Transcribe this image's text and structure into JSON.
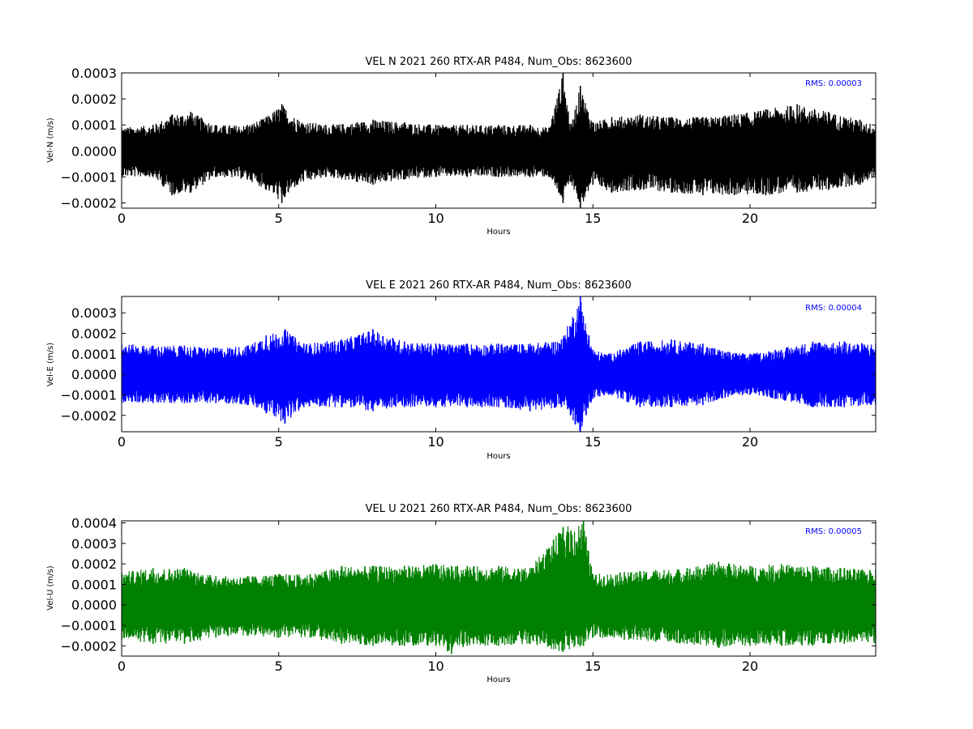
{
  "chart_data": [
    {
      "type": "line",
      "title": "VEL N 2021 260 RTX-AR  P484, Num_Obs: 8623600",
      "xlabel": "Hours",
      "ylabel": "Vel-N (m/s)",
      "xlim": [
        0,
        24
      ],
      "ylim": [
        -0.00022,
        0.0003
      ],
      "xticks": [
        0,
        5,
        10,
        15,
        20
      ],
      "xtick_labels": [
        "0",
        "5",
        "10",
        "15",
        "20"
      ],
      "yticks": [
        -0.0002,
        -0.0001,
        0.0,
        0.0001,
        0.0002,
        0.0003
      ],
      "ytick_labels": [
        "−0.0002",
        "−0.0001",
        "0.0000",
        "0.0001",
        "0.0002",
        "0.0003"
      ],
      "color": "#000000",
      "annotation": "RMS:  0.00003",
      "series": [
        {
          "hours": [
            0,
            1,
            1.6,
            2.2,
            3,
            4,
            4.6,
            5.1,
            5.6,
            6.5,
            7.5,
            8,
            9,
            10,
            11,
            12,
            13,
            13.6,
            14.05,
            14.3,
            14.6,
            15,
            15.6,
            16.5,
            17.5,
            18.5,
            19.5,
            20.5,
            21.5,
            22.5,
            23.5,
            24
          ],
          "upper": [
            9e-05,
            0.0001,
            0.00014,
            0.00015,
            0.0001,
            0.0001,
            0.00013,
            0.00018,
            0.00012,
            0.0001,
            0.00011,
            0.00012,
            0.00011,
            0.0001,
            0.0001,
            0.0001,
            0.0001,
            9e-05,
            0.0003,
            0.0001,
            0.00025,
            0.00011,
            0.00013,
            0.00014,
            0.00013,
            0.00013,
            0.00014,
            0.00016,
            0.00018,
            0.00015,
            0.00012,
            0.0001
          ],
          "lower": [
            -0.0001,
            -0.0001,
            -0.00017,
            -0.00016,
            -0.0001,
            -0.00011,
            -0.00015,
            -0.0002,
            -0.00013,
            -0.0001,
            -0.00012,
            -0.00013,
            -0.00011,
            -0.0001,
            -0.0001,
            -0.0001,
            -0.0001,
            -0.0001,
            -0.0002,
            -0.00012,
            -0.00022,
            -0.00013,
            -0.00016,
            -0.00015,
            -0.00016,
            -0.00017,
            -0.00017,
            -0.00017,
            -0.00016,
            -0.00015,
            -0.00013,
            -0.0001
          ]
        }
      ]
    },
    {
      "type": "line",
      "title": "VEL E 2021 260 RTX-AR  P484, Num_Obs: 8623600",
      "xlabel": "Hours",
      "ylabel": "Vel-E (m/s)",
      "xlim": [
        0,
        24
      ],
      "ylim": [
        -0.00028,
        0.00038
      ],
      "xticks": [
        0,
        5,
        10,
        15,
        20
      ],
      "xtick_labels": [
        "0",
        "5",
        "10",
        "15",
        "20"
      ],
      "yticks": [
        -0.0002,
        -0.0001,
        0.0,
        0.0001,
        0.0002,
        0.0003
      ],
      "ytick_labels": [
        "−0.0002",
        "−0.0001",
        "0.0000",
        "0.0001",
        "0.0002",
        "0.0003"
      ],
      "color": "#0000ff",
      "annotation": "RMS:  0.00004",
      "series": [
        {
          "hours": [
            0,
            1,
            2,
            3,
            4,
            4.6,
            5.2,
            5.8,
            7,
            8,
            9,
            10,
            11,
            12,
            13,
            14,
            14.6,
            15,
            15.5,
            16.5,
            17.5,
            18.5,
            19.3,
            20,
            20.8,
            22,
            23,
            24
          ],
          "upper": [
            0.00015,
            0.00014,
            0.00014,
            0.00013,
            0.00014,
            0.00019,
            0.00022,
            0.00015,
            0.00017,
            0.00022,
            0.00016,
            0.00015,
            0.00015,
            0.00015,
            0.00015,
            0.00017,
            0.00038,
            0.00012,
            0.0001,
            0.00016,
            0.00017,
            0.00015,
            0.00011,
            0.0001,
            0.00012,
            0.00016,
            0.00016,
            0.00015
          ],
          "lower": [
            -0.00014,
            -0.00014,
            -0.00014,
            -0.00014,
            -0.00015,
            -0.00019,
            -0.00024,
            -0.00016,
            -0.00016,
            -0.00018,
            -0.00016,
            -0.00016,
            -0.00016,
            -0.00016,
            -0.00018,
            -0.00016,
            -0.00028,
            -0.00012,
            -0.0001,
            -0.00016,
            -0.00016,
            -0.00015,
            -0.00011,
            -0.0001,
            -0.00012,
            -0.00016,
            -0.00016,
            -0.00015
          ]
        }
      ]
    },
    {
      "type": "line",
      "title": "VEL U 2021 260 RTX-AR  P484, Num_Obs: 8623600",
      "xlabel": "Hours",
      "ylabel": "Vel-U (m/s)",
      "xlim": [
        0,
        24
      ],
      "ylim": [
        -0.00025,
        0.00041
      ],
      "xticks": [
        0,
        5,
        10,
        15,
        20
      ],
      "xtick_labels": [
        "0",
        "5",
        "10",
        "15",
        "20"
      ],
      "yticks": [
        -0.0002,
        -0.0001,
        0.0,
        0.0001,
        0.0002,
        0.0003,
        0.0004
      ],
      "ytick_labels": [
        "−0.0002",
        "−0.0001",
        "0.0000",
        "0.0001",
        "0.0002",
        "0.0003",
        "0.0004"
      ],
      "color": "#008000",
      "annotation": "RMS:  0.00005",
      "series": [
        {
          "hours": [
            0,
            1,
            2,
            3,
            4,
            5,
            6,
            7,
            8,
            9,
            10,
            10.5,
            11,
            12,
            13,
            14.05,
            14.7,
            15,
            16,
            17,
            18,
            19,
            20,
            21,
            22,
            23,
            24
          ],
          "upper": [
            0.00016,
            0.00018,
            0.00018,
            0.00014,
            0.00014,
            0.00015,
            0.00015,
            0.00019,
            0.00019,
            0.00019,
            0.0002,
            0.00019,
            0.00019,
            0.00019,
            0.00018,
            0.00038,
            0.00041,
            0.00015,
            0.00016,
            0.00017,
            0.00018,
            0.00021,
            0.00019,
            0.0002,
            0.00019,
            0.00018,
            0.00017
          ],
          "lower": [
            -0.00017,
            -0.00019,
            -0.00019,
            -0.00016,
            -0.00015,
            -0.00016,
            -0.00016,
            -0.00019,
            -0.0002,
            -0.0002,
            -0.0002,
            -0.00024,
            -0.0002,
            -0.0002,
            -0.00019,
            -0.00023,
            -0.0002,
            -0.00016,
            -0.00017,
            -0.00018,
            -0.00019,
            -0.00021,
            -0.0002,
            -0.0002,
            -0.0002,
            -0.00019,
            -0.00019
          ]
        }
      ]
    }
  ]
}
